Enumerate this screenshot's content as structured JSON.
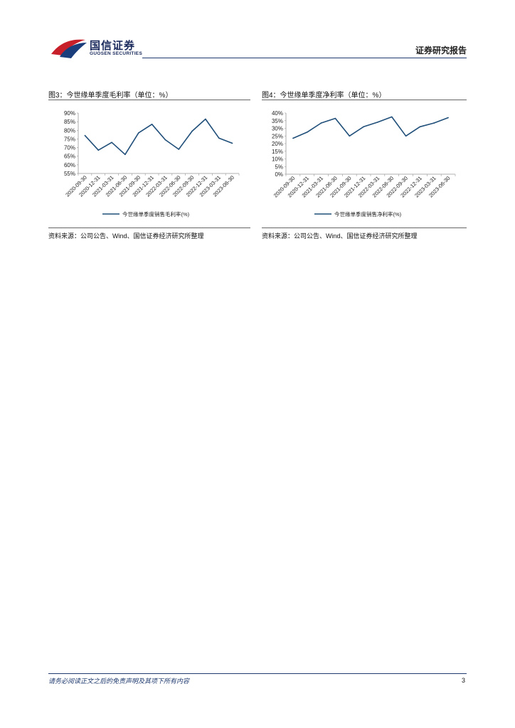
{
  "header": {
    "logo_cn": "国信证券",
    "logo_en": "GUOSEN SECURITIES",
    "report_type": "证券研究报告",
    "brand_color": "#1f3a6e",
    "logo_red": "#c8202a",
    "logo_blue": "#1a3d7c"
  },
  "figures": [
    {
      "title": "图3：今世缘单季度毛利率（单位：%）",
      "source": "资料来源：公司公告、Wind、国信证券经济研究所整理"
    },
    {
      "title": "图4：今世缘单季度净利率（单位：%）",
      "source": "资料来源：公司公告、Wind、国信证券经济研究所整理"
    }
  ],
  "chart_data": [
    {
      "type": "line",
      "title": "",
      "x": [
        "2020-09-30",
        "2020-12-31",
        "2021-03-31",
        "2021-06-30",
        "2021-09-30",
        "2021-12-31",
        "2022-03-31",
        "2022-06-30",
        "2022-09-30",
        "2022-12-31",
        "2023-03-31",
        "2023-06-30"
      ],
      "series": [
        {
          "name": "今世缘单季度销售毛利率(%)",
          "values": [
            77,
            68.5,
            73,
            66,
            78.5,
            83.5,
            74.5,
            69,
            79.5,
            86.5,
            75.5,
            72.5
          ]
        }
      ],
      "yticks": [
        "90%",
        "85%",
        "80%",
        "75%",
        "70%",
        "65%",
        "60%",
        "55%"
      ],
      "ylim": [
        55,
        90
      ],
      "color": "#1f4e79",
      "grid": false,
      "legend": "bottom"
    },
    {
      "type": "line",
      "title": "",
      "x": [
        "2020-09-30",
        "2020-12-31",
        "2021-03-31",
        "2021-06-30",
        "2021-09-30",
        "2021-12-31",
        "2022-03-31",
        "2022-06-30",
        "2022-09-30",
        "2022-12-31",
        "2023-03-31",
        "2023-06-30"
      ],
      "series": [
        {
          "name": "今世缘单季度销售净利率(%)",
          "values": [
            23.5,
            27.5,
            33.5,
            36.5,
            25,
            31,
            34,
            37.5,
            25,
            31,
            33.5,
            37
          ]
        }
      ],
      "yticks": [
        "40%",
        "35%",
        "30%",
        "25%",
        "20%",
        "15%",
        "10%",
        "5%",
        "0%"
      ],
      "ylim": [
        0,
        40
      ],
      "color": "#1f4e79",
      "grid": false,
      "legend": "bottom"
    }
  ],
  "footer": {
    "disclaimer": "请务必阅读正文之后的免责声明及其项下所有内容",
    "page_number": "3"
  }
}
